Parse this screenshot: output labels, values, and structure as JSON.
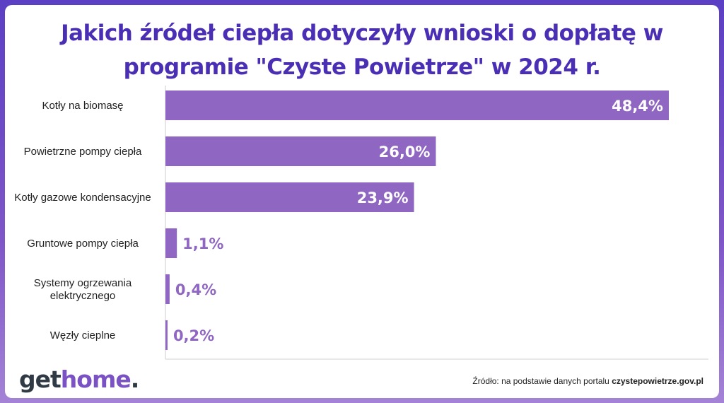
{
  "chart_data": {
    "type": "bar",
    "orientation": "horizontal",
    "title": "Jakich źródeł ciepła dotyczyły wnioski o dopłatę w programie \"Czyste Powietrze\" w 2024 r.",
    "title_lines": [
      "Jakich źródeł ciepła dotyczyły wnioski o dopłatę w",
      "programie \"Czyste Powietrze\" w 2024 r."
    ],
    "categories": [
      [
        "Kotły na biomasę"
      ],
      [
        "Powietrzne pompy ciepła"
      ],
      [
        "Kotły gazowe kondensacyjne"
      ],
      [
        "Gruntowe pompy ciepła"
      ],
      [
        "Systemy ogrzewania",
        "elektrycznego"
      ],
      [
        "Węzły cieplne"
      ]
    ],
    "values": [
      48.4,
      26.0,
      23.9,
      1.1,
      0.4,
      0.2
    ],
    "labels": [
      "48,4%",
      "26,0%",
      "23,9%",
      "1,1%",
      "0,4%",
      "0,2%"
    ],
    "unit": "%",
    "xlim": [
      0,
      50
    ],
    "bar_color": "#8f67c2",
    "label_inside_color": "#ffffff",
    "label_outside_color": "#8f67c2",
    "axis_color": "#cccccc"
  },
  "brand": {
    "logo_part1": "get",
    "logo_part2": "home",
    "logo_part3": "."
  },
  "source": {
    "prefix": "Źródło: na podstawie danych portalu ",
    "site": "czystepowietrze.gov.pl"
  }
}
